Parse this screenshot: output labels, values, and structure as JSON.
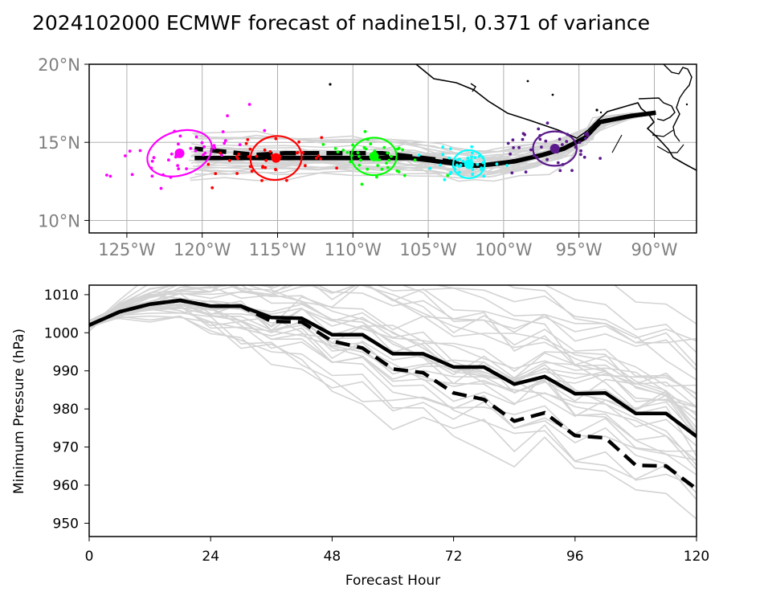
{
  "title": "2024102000 ECMWF forecast of nadine15l, 0.371 of variance",
  "chart_data": [
    {
      "type": "scatter",
      "panel": "track map",
      "xlabel": "",
      "ylabel": "",
      "xlim": [
        -127.5,
        -87.2
      ],
      "ylim": [
        9.2,
        20.0
      ],
      "x_ticks": [
        -125,
        -120,
        -115,
        -110,
        -105,
        -100,
        -95,
        -90
      ],
      "x_tick_labels": [
        "125°W",
        "120°W",
        "115°W",
        "110°W",
        "105°W",
        "100°W",
        "95°W",
        "90°W"
      ],
      "y_ticks": [
        10,
        15,
        20
      ],
      "y_tick_labels": [
        "10°N",
        "15°N",
        "20°N"
      ],
      "grid": true,
      "tracks": {
        "solid_black": {
          "lon": [
            -89.9,
            -91.5,
            -93.6,
            -94.6,
            -96.0,
            -97.4,
            -99.2,
            -100.7,
            -101.8,
            -103.0,
            -104.5,
            -106.2,
            -108.0,
            -110.0,
            -112.2,
            -114.5,
            -116.5,
            -118.5,
            -120.5
          ],
          "lat": [
            16.9,
            16.7,
            16.3,
            15.3,
            14.6,
            14.2,
            13.8,
            13.6,
            13.5,
            13.6,
            13.8,
            14.0,
            14.0,
            14.0,
            14.0,
            14.0,
            14.0,
            14.0,
            14.0
          ]
        },
        "dashed_black": {
          "lon": [
            -89.9,
            -91.5,
            -93.6,
            -94.6,
            -96.0,
            -97.4,
            -99.2,
            -100.7,
            -101.8,
            -103.0,
            -104.5,
            -106.2,
            -108.0,
            -110.0,
            -112.2,
            -114.5,
            -116.5,
            -118.5,
            -120.5
          ],
          "lat": [
            16.9,
            16.7,
            16.3,
            15.3,
            14.6,
            14.2,
            13.8,
            13.6,
            13.5,
            13.7,
            13.9,
            14.1,
            14.3,
            14.3,
            14.3,
            14.3,
            14.2,
            14.4,
            14.6
          ]
        }
      },
      "clusters": [
        {
          "color": "#ff00ff",
          "center": [
            -121.5,
            14.3
          ],
          "ellipse": {
            "rx_deg": 4.4,
            "ry_deg": 1.4,
            "angle": 18
          }
        },
        {
          "color": "#ff0000",
          "center": [
            -115.1,
            14.0
          ],
          "ellipse": {
            "rx_deg": 3.4,
            "ry_deg": 1.4,
            "angle": 8
          }
        },
        {
          "color": "#00ff00",
          "center": [
            -108.6,
            14.1
          ],
          "ellipse": {
            "rx_deg": 3.0,
            "ry_deg": 1.2,
            "angle": 0
          }
        },
        {
          "color": "#00ffff",
          "center": [
            -102.3,
            13.6
          ],
          "ellipse": {
            "rx_deg": 2.1,
            "ry_deg": 0.9,
            "angle": 0
          }
        },
        {
          "color": "#5b1a8b",
          "center": [
            -96.6,
            14.6
          ],
          "ellipse": {
            "rx_deg": 2.9,
            "ry_deg": 1.1,
            "angle": 0
          }
        }
      ]
    },
    {
      "type": "line",
      "panel": "minimum pressure",
      "xlabel": "Forecast Hour",
      "ylabel": "Minimum Pressure (hPa)",
      "xlim": [
        0,
        120
      ],
      "ylim": [
        946.5,
        1012.5
      ],
      "x_ticks": [
        0,
        24,
        48,
        72,
        96,
        120
      ],
      "y_ticks": [
        950,
        960,
        970,
        980,
        990,
        1000,
        1010
      ],
      "grid": false,
      "x": [
        0,
        6,
        12,
        18,
        24,
        30,
        36,
        42,
        48,
        54,
        60,
        66,
        72,
        78,
        84,
        90,
        96,
        102,
        108,
        114,
        120
      ],
      "series": [
        {
          "style": "solid",
          "color": "#000000",
          "values": [
            1002.0,
            1005.5,
            1007.5,
            1008.5,
            1007.0,
            1007.0,
            1004.0,
            1003.8,
            999.5,
            999.5,
            994.5,
            994.5,
            991.0,
            991.0,
            986.5,
            988.5,
            984.0,
            984.2,
            978.8,
            978.8,
            972.8
          ]
        },
        {
          "style": "dashed",
          "color": "#000000",
          "values": [
            1002.0,
            1005.5,
            1007.5,
            1008.5,
            1007.0,
            1007.0,
            1003.0,
            1002.8,
            997.8,
            996.0,
            990.5,
            989.5,
            984.2,
            982.5,
            976.8,
            979.0,
            973.0,
            972.4,
            965.2,
            965.0,
            959.0
          ]
        }
      ]
    }
  ],
  "colors": {
    "ensemble": "#d3d3d3",
    "land": "#000000",
    "grid": "#b0b0b0",
    "map_ticks": "#808080"
  }
}
